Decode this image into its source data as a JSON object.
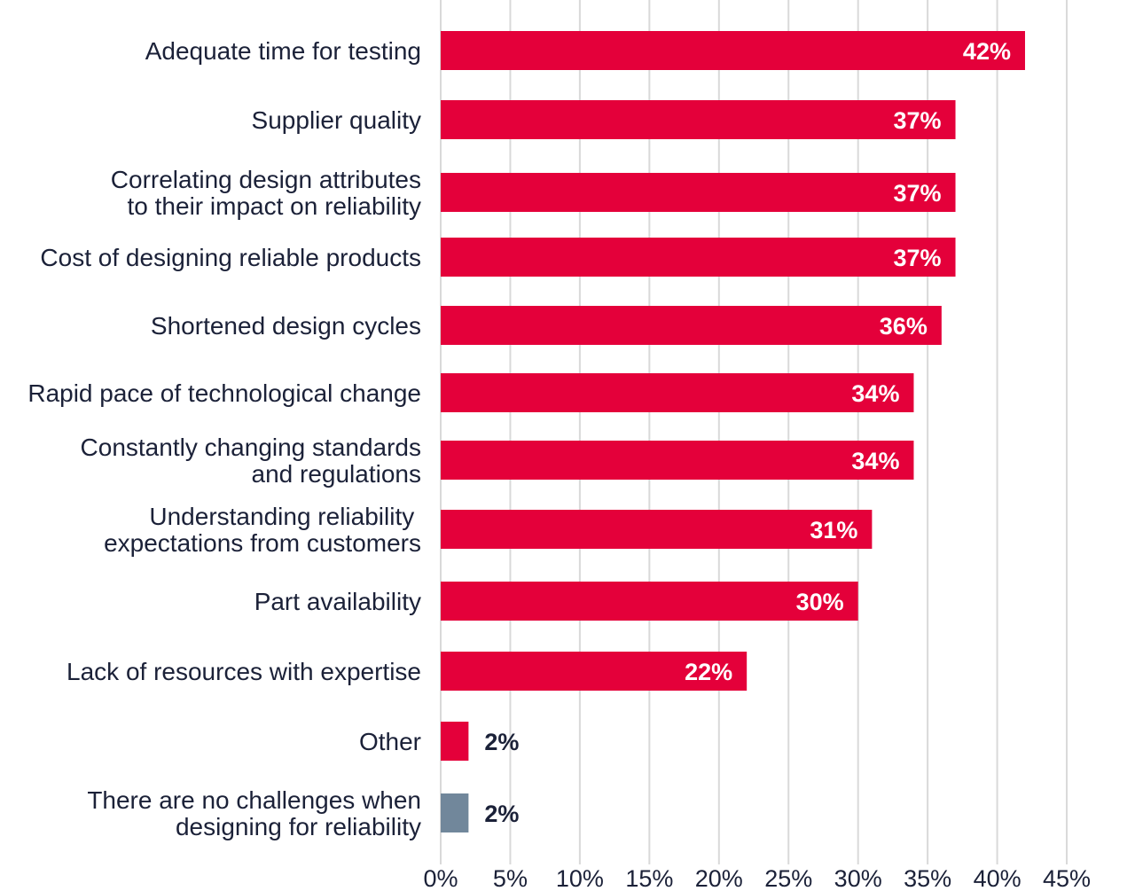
{
  "chart_data": {
    "type": "bar",
    "orientation": "horizontal",
    "categories": [
      [
        "Adequate time for testing"
      ],
      [
        "Supplier quality"
      ],
      [
        "Correlating design attributes",
        "to their impact on reliability"
      ],
      [
        "Cost of designing reliable products"
      ],
      [
        "Shortened design cycles"
      ],
      [
        "Rapid pace of technological change"
      ],
      [
        "Constantly changing standards",
        "and regulations"
      ],
      [
        "Understanding reliability ",
        "expectations from customers"
      ],
      [
        "Part availability"
      ],
      [
        "Lack of resources with expertise"
      ],
      [
        "Other"
      ],
      [
        "There are no challenges when",
        "designing for reliability"
      ]
    ],
    "values": [
      42,
      37,
      37,
      37,
      36,
      34,
      34,
      31,
      30,
      22,
      2,
      2
    ],
    "value_labels": [
      "42%",
      "37%",
      "37%",
      "37%",
      "36%",
      "34%",
      "34%",
      "31%",
      "30%",
      "22%",
      "2%",
      "2%"
    ],
    "bar_colors": [
      "#e4003a",
      "#e4003a",
      "#e4003a",
      "#e4003a",
      "#e4003a",
      "#e4003a",
      "#e4003a",
      "#e4003a",
      "#e4003a",
      "#e4003a",
      "#e4003a",
      "#71879b"
    ],
    "xlim": [
      0,
      45
    ],
    "x_ticks": [
      "0%",
      "5%",
      "10%",
      "15%",
      "20%",
      "25%",
      "30%",
      "35%",
      "40%",
      "45%"
    ],
    "grid": true,
    "title": "",
    "xlabel": "",
    "ylabel": ""
  }
}
